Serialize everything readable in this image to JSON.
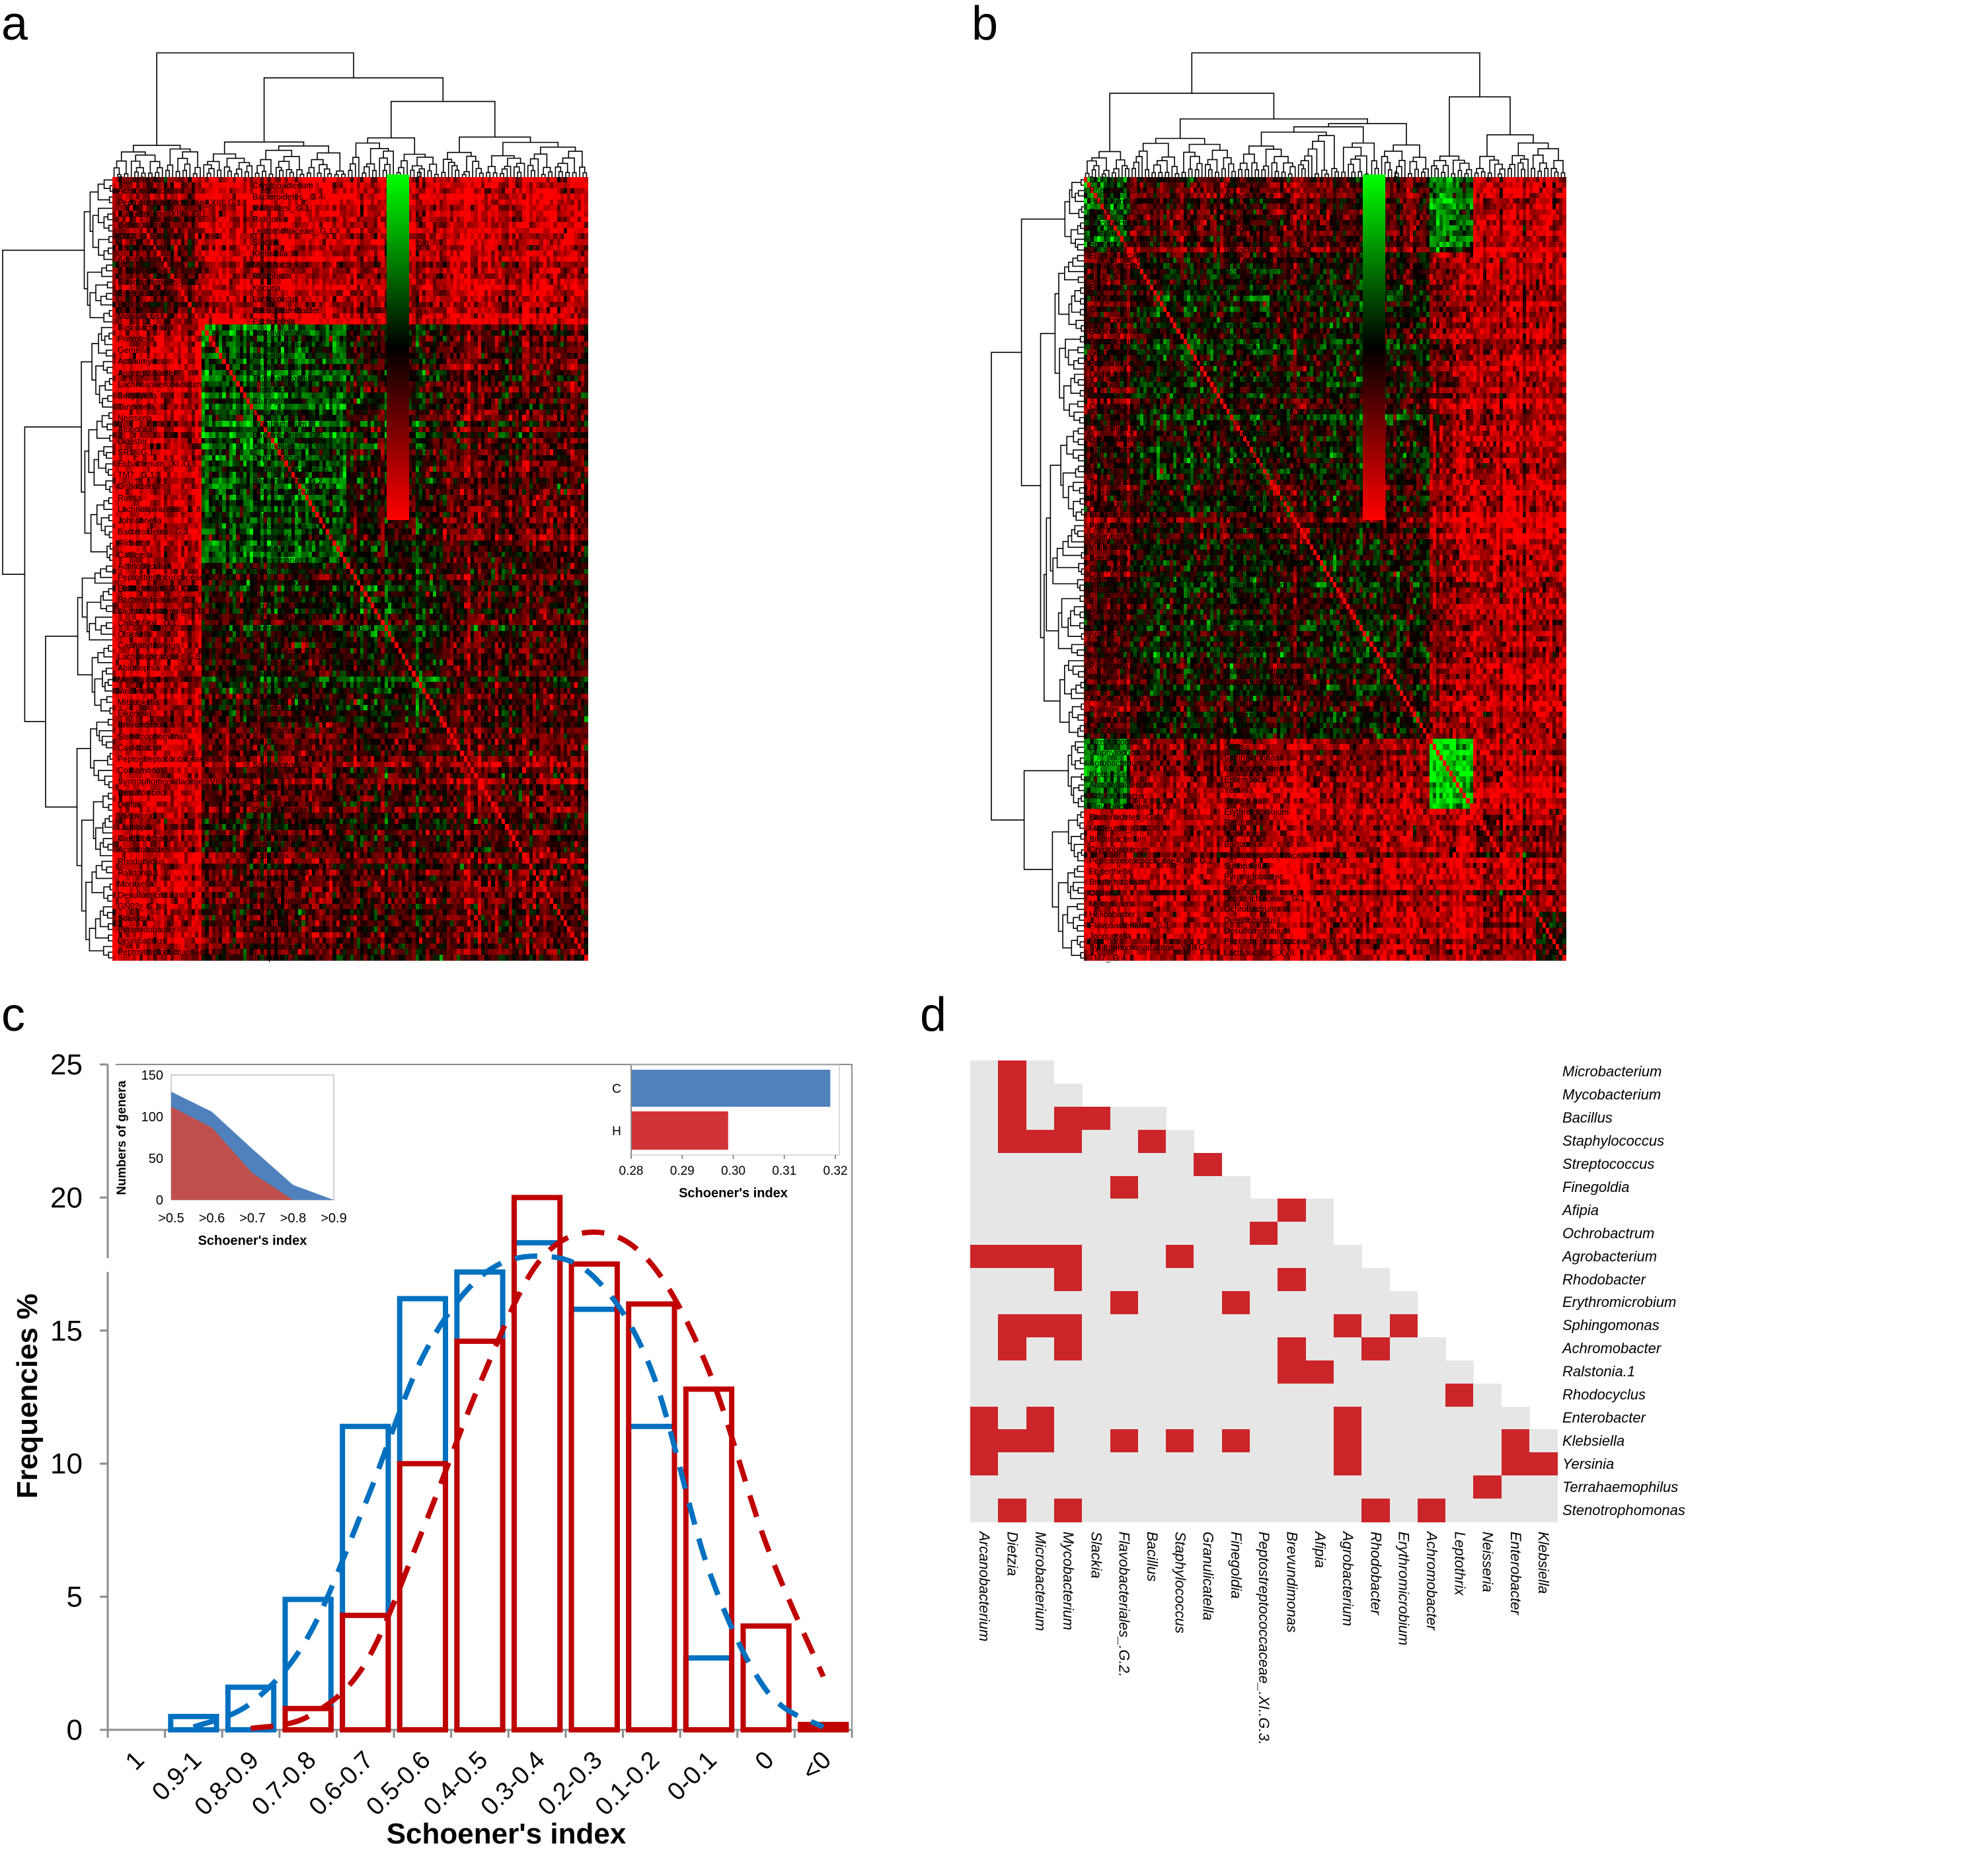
{
  "panel_labels": {
    "a": "a",
    "b": "b",
    "c": "c",
    "d": "d"
  },
  "chart_data": [
    {
      "panel": "a",
      "type": "heatmap",
      "clustered": true,
      "dendrograms": [
        "rows",
        "columns"
      ],
      "colorbar": {
        "min": 0,
        "max": 1,
        "ticks": [
          "1",
          "0.8",
          "0.6",
          "0.4",
          "0.2",
          "0"
        ],
        "colors": [
          "#00FF00",
          "#000000",
          "#FF0000"
        ]
      },
      "row_labels": [
        "Eggerthella",
        "Cryptobacterium",
        "Achromobacter",
        "Bacteroidetes_.G.4.",
        "Peptostreptococcaceae_.XIII..G.1.",
        "Mollicutes_.G.1.",
        "Eubacterium_.XIVa..G.1.",
        "Ralstonia",
        "Ochrobactrum",
        "Leptotrichiaceae_.G.1.",
        "TM7_.G.5.",
        "Slackia",
        "Rhodobacter",
        "Klebsiella",
        "Agrobacterium",
        "Microbacterium",
        "Bradyrhizobium",
        "Rhizobium",
        "Flavobacteriales_.G.2.",
        "Kocuria",
        "Enterococcus",
        "Lactococcus",
        "Burkholderia",
        "Pseudoramibacter",
        "Mobiluncus",
        "Escherichia",
        "Fusobacterium",
        "Porphyromonas",
        "Prevotella",
        "Alloprevotella",
        "Gemella",
        "Kingella",
        "Actinomyces",
        "Streptococcus",
        "Aggregatibacter",
        "Terrahaemophilus",
        "Lachnoanaerobaculum",
        "Leptotrichia",
        "Bergeyella",
        "Campylobacter",
        "Tannerella",
        "Propionibacterium",
        "Neisseria",
        "Mogibacterium",
        "Atopobium",
        "Bacteroidetes_.G.5.",
        "Dialister",
        "Clostridiales_.F.2..G.2.",
        "SR1_.G.1.",
        "Peptococcus",
        "Eubacterium_.XI..G.6.",
        "Lachnospiraceae_.G.5.",
        "TM7_.G.1.",
        "Bacteroidales_.G.2.",
        "Oribacterium",
        "Corynebacterium",
        "Rothia",
        "Fretibacterium",
        "Lachnospiraceae_.G.8.",
        "Bacteroides",
        "Johnsonella",
        "Veillonellaceae_.G.1.",
        "Bacteroidetes_.G.3.",
        "Clostridiales_.F.1..G.1.",
        "Filifactor",
        "Treponema",
        "Catonella",
        "Selenomonas",
        "Actinobaculum",
        "Parvimonas",
        "Peptostreptococcaceae_.XI..G.4.",
        "Peptostreptococcus",
        "Eubacterium_.XI..G.3.",
        "Eubacterium_.XI..G.5.",
        "Bacteroidaceae_.G.1.",
        "Peptostreptococcaceae_.XI..G.2.",
        "Lachnospiraceae_.G.2.",
        "Lactobacillus_.XVII.",
        "Chloroflexi_.G.1.",
        "Peptostreptococcaceae_.XI..G.1.",
        "Olsenella",
        "Shuttleworthia",
        "Capnocytophaga",
        "Clostridiales_.F.2..G.1.",
        "Lachnospiraceae_.G.3.",
        "Granulicatella",
        "Abiotrophia",
        "Haemophilus",
        "Megasphaera",
        "Moryella",
        "Veillonella",
        "Anaeroglobus",
        "Mitsuokella",
        "Eubacterium_.XI..G.1.",
        "Eikenella",
        "Bacteroidetes_.G.6.",
        "Brevundimonas",
        "Mycobacterium",
        "Stenotrophomonas",
        "Dietzia",
        "Caulobacter",
        "Afipia",
        "Peptostreptococcaceae_.XIII..G.2.",
        "Staphylococcus",
        "Comamonas",
        "TM7_.G.3.",
        "Syntrophomonadaceae_.VIII..G.1.",
        "Desulfobulbus",
        "Desulfovibrio",
        "Bacillus",
        "Delftia",
        "Sphingomonas",
        "Variovorax",
        "Peptostreptococcaceae_.XI..G.5.",
        "Lautropia",
        "Ottowia",
        "Cardiobacterium",
        "Simonsiella",
        "Acinetobacter",
        "Leptothrix",
        "Rhodocyclus",
        "Flavobacteriales_.G.1.",
        "Ralstonia.1",
        "Mycoplasma",
        "Moraxella",
        "Sneathia",
        "Desulfomicrobium",
        "Pseudomonas",
        "GN02_.G.1.",
        "TM7_.G.2.",
        "Scardovia",
        "Lactobacillus",
        "Pyramidobacter",
        "TM7_.G.4.",
        "Lysinibacillus",
        "Helicobacter",
        "Peptostreptococcaceae_.XI..G.3.",
        "Jonquetella"
      ]
    },
    {
      "panel": "b",
      "type": "heatmap",
      "clustered": true,
      "dendrograms": [
        "rows",
        "columns"
      ],
      "colorbar": {
        "min": 0,
        "max": 1,
        "ticks": [
          "1",
          "0.8",
          "0.6",
          "0.4",
          "0.2",
          "0"
        ],
        "colors": [
          "#00FF00",
          "#000000",
          "#FF0000"
        ]
      },
      "row_labels": [
        "Delftia",
        "Leptothrix",
        "Rhodocyclus",
        "Acinetobacter",
        "Pseudomonas",
        "Afipia",
        "Ralstonia.1",
        "Brevundimonas",
        "Mycobacterium",
        "Rhodobacter",
        "Bacillus",
        "Slackia",
        "Stenotrophomonas",
        "Eubacterium_.XIVa..G.1.",
        "Enterococcus",
        "Escherichia",
        "Pseudoramibacter",
        "Moraxella",
        "SR1_.G.1.",
        "TM7_.G.2.",
        "Eubacterium_.XI..G.3.",
        "Rhizobium",
        "TM7_.G.5.",
        "Kocuria",
        "Comamonas",
        "Abiotrophia",
        "Lactococcus",
        "Lysinibacillus",
        "Burkholderia",
        "Lactobacillus",
        "Oribacterium",
        "Variovorax",
        "Actinobaculum",
        "Scardovia",
        "Peptostreptococcaceae_.XI..G.5.",
        "TM7_.G.1.",
        "Lachnospiraceae_.G.3.",
        "Peptostreptococcus",
        "Olsenella",
        "Peptostreptococcaceae_.XI..G.4.",
        "Mitsuokella",
        "TM7_.G.3.",
        "Caulobacter",
        "Lachnospiraceae_.G.5.",
        "Lautropia",
        "Bacteroidetes_.G.5.",
        "Chloroflexi_.G.1.",
        "Bacteroidetes_.G.6.",
        "Desulfovibrio",
        "Johnsonella",
        "Shuttleworthia",
        "Eubacterium_.XI..G.6.",
        "Fretibacterium",
        "Lachnospiraceae_.G.8.",
        "Filifactor",
        "Megasphaera",
        "Treponema",
        "Bacteroides",
        "Clostridiales_.F.1..G.1.",
        "Bacteroidetes_.G.3.",
        "Bacteroidaceae_.G.1.",
        "Lachnospiraceae_.G.2.",
        "Eubacterium_.XI..G.5.",
        "Peptococcus",
        "Peptostreptococcaceae_.XI..G.1.",
        "Propionibacterium",
        "Selenomonas",
        "Clostridiales_.F.2..G.1.",
        "Veillonellaceae_.G.1.",
        "Bacteroidales_.G.2.",
        "Bergeyella",
        "Clostridiales_.F.2..G.2.",
        "Campylobacter",
        "Capnocytophaga",
        "Peptostreptococcaceae_.XI..G.2.",
        "Cardiobacterium",
        "Alloprevotella",
        "GN02_.G.1.",
        "Eikenella",
        "Rothia",
        "Haemophilus",
        "Veillonella",
        "Terrahaemophilus",
        "Actinomyces",
        "Aggregatibacter",
        "Eubacterium_.XI..G.1.",
        "Neisseria",
        "Mogibacterium",
        "Anaeroglobus",
        "Catonella",
        "Parvimonas",
        "Corynebacterium",
        "Kingella",
        "Lachnoanaerobaculum",
        "Moryella",
        "Porphyromonas",
        "Atopobium",
        "Gemella",
        "Dialister",
        "Tannerella",
        "Leptotrichia",
        "Granulicatella",
        "Fusobacterium",
        "Prevotella",
        "Streptococcus",
        "Dietzia",
        "Staphylococcus",
        "Sphingomonas",
        "Agrobacterium",
        "Microbacterium",
        "Klebsiella",
        "Enterobacter",
        "Arcanobacterium",
        "Yersinia",
        "Achromobacter",
        "Finegoldia",
        "Flavobacteriales_.G.2.",
        "Erythromicrobium",
        "Bacteroidetes_.G.4.",
        "Ralstonia",
        "Mollicutes_.G.1.",
        "Mobiluncus",
        "Bifidobacterium",
        "Bartonella",
        "Cryptobacterium",
        "Peptostreptococcaceae_.XIII..G.1.",
        "Peptostreptococcaceae_.XIII..G.2.",
        "Simonsiella",
        "Eggerthella",
        "Pyramidobacter",
        "Bradyrhizobium",
        "Sneathia",
        "Ottowia",
        "Leptotrichiaceae_.G.1.",
        "Mycoplasma",
        "Ochrobactrum",
        "Helicobacter",
        "Desulfobulbus",
        "Flavobacteriales_.G.1.",
        "Desulfomicrobium",
        "Jonquetella",
        "Peptostreptococcaceae_.XI..G.3.",
        "Syntrophomonadaceae_.VIII..G.1.",
        "Lactobacillus_.XVII.",
        "TM7_.G.4."
      ]
    },
    {
      "panel": "c",
      "type": "bar",
      "style": "outlined bars with dashed fitted curves",
      "categories": [
        "1",
        "0.9-1",
        "0.8-0.9",
        "0.7-0.8",
        "0.6-0.7",
        "0.5-0.6",
        "0.4-0.5",
        "0.3-0.4",
        "0.2-0.3",
        "0.1-0.2",
        "0-0.1",
        "0",
        "<0"
      ],
      "series": [
        {
          "name": "C",
          "color": "#0070C0",
          "values": [
            0,
            0.5,
            1.6,
            4.9,
            11.4,
            16.2,
            17.2,
            18.3,
            15.8,
            11.4,
            2.7,
            0,
            0
          ]
        },
        {
          "name": "H",
          "color": "#C00000",
          "values": [
            0,
            0,
            0,
            0.8,
            4.3,
            10.0,
            14.6,
            20.0,
            17.5,
            16.0,
            12.8,
            3.9,
            0.2
          ]
        }
      ],
      "fit_curves": [
        {
          "series": "C",
          "color": "#0070C0",
          "values": [
            null,
            0.1,
            1.0,
            3.5,
            8.5,
            14.0,
            17.0,
            17.8,
            17.0,
            13.5,
            6.0,
            1.5,
            0.1
          ]
        },
        {
          "series": "H",
          "color": "#C00000",
          "values": [
            null,
            null,
            0.05,
            0.5,
            2.5,
            7.5,
            13.0,
            17.5,
            18.7,
            17.5,
            13.5,
            7.0,
            2.0
          ]
        }
      ],
      "xlabel": "Schoener's index",
      "ylabel": "Frequencies %",
      "ylim": [
        0,
        25
      ],
      "yticks": [
        "0",
        "5",
        "10",
        "15",
        "20",
        "25"
      ],
      "insets": [
        {
          "type": "area",
          "position": "top-left",
          "categories": [
            ">0.5",
            ">0.6",
            ">0.7",
            ">0.8",
            ">0.9"
          ],
          "series": [
            {
              "name": "C",
              "color": "#4F81BD",
              "values": [
                130,
                106,
                61,
                18,
                0
              ]
            },
            {
              "name": "H",
              "color": "#C0504D",
              "values": [
                112,
                87,
                32,
                0,
                0
              ]
            }
          ],
          "ylabel": "Numbers of genera",
          "xlabel": "Schoener's index",
          "ylim": [
            0,
            150
          ],
          "yticks": [
            "0",
            "50",
            "100",
            "150"
          ]
        },
        {
          "type": "bar",
          "orientation": "horizontal",
          "position": "top-right",
          "categories": [
            "C",
            "H"
          ],
          "values": [
            0.319,
            0.299
          ],
          "colors": [
            "#4F81BD",
            "#D13438"
          ],
          "xlim": [
            0.28,
            0.32
          ],
          "xticks": [
            "0.28",
            "0.29",
            "0.30",
            "0.31",
            "0.32"
          ],
          "xlabel": "Schoener's index"
        }
      ]
    },
    {
      "panel": "d",
      "type": "heatmap",
      "style": "lower-triangular binary matrix",
      "colors": {
        "absent": "#E6E6E6",
        "present": "#CC2529"
      },
      "row_labels": [
        "Microbacterium",
        "Mycobacterium",
        "Bacillus",
        "Staphylococcus",
        "Streptococcus",
        "Finegoldia",
        "Afipia",
        "Ochrobactrum",
        "Agrobacterium",
        "Rhodobacter",
        "Erythromicrobium",
        "Sphingomonas",
        "Achromobacter",
        "Ralstonia.1",
        "Rhodocyclus",
        "Enterobacter",
        "Klebsiella",
        "Yersinia",
        "Terrahaemophilus",
        "Stenotrophomonas"
      ],
      "col_labels": [
        "Arcanobacterium",
        "Dietzia",
        "Microbacterium",
        "Mycobacterium",
        "Slackia",
        "Flavobacteriales_.G.2.",
        "Bacillus",
        "Staphylococcus",
        "Granulicatella",
        "Finegoldia",
        "Peptostreptococcaceae_.XI..G.3.",
        "Brevundimonas",
        "Afipia",
        "Agrobacterium",
        "Rhodobacter",
        "Erythromicrobium",
        "Achromobacter",
        "Leptothrix",
        "Neisseria",
        "Enterobacter",
        "Klebsiella"
      ],
      "cells_per_row": [
        3,
        4,
        7,
        8,
        9,
        10,
        13,
        13,
        14,
        15,
        16,
        16,
        17,
        18,
        19,
        20,
        21,
        21,
        21,
        21
      ],
      "present_cells_by_row": [
        [
          1
        ],
        [
          1
        ],
        [
          1,
          3,
          4
        ],
        [
          1,
          2,
          3,
          6
        ],
        [
          8
        ],
        [
          5
        ],
        [
          11
        ],
        [
          10
        ],
        [
          0,
          1,
          2,
          3,
          7
        ],
        [
          3,
          11
        ],
        [
          5,
          9
        ],
        [
          1,
          2,
          3,
          13,
          15
        ],
        [
          1,
          3,
          11,
          14
        ],
        [
          11,
          12
        ],
        [
          17
        ],
        [
          0,
          2,
          13
        ],
        [
          0,
          1,
          2,
          5,
          7,
          9,
          13,
          19
        ],
        [
          0,
          13,
          19,
          20
        ],
        [
          18
        ],
        [
          1,
          3,
          14,
          16
        ]
      ]
    }
  ]
}
